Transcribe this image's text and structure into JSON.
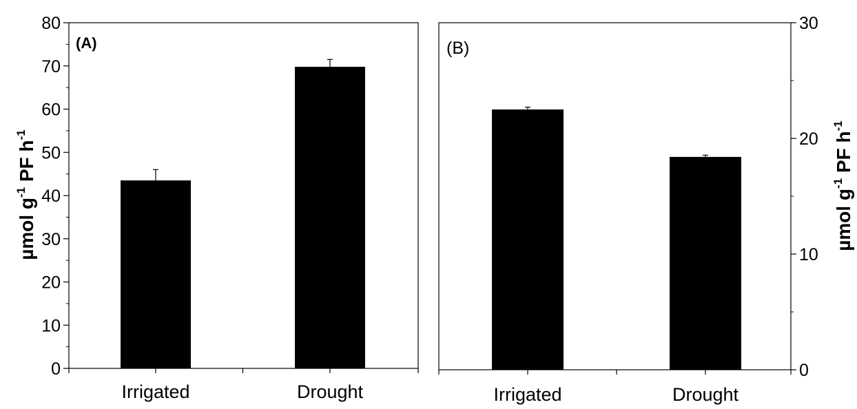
{
  "chart_data": [
    {
      "type": "bar",
      "panel_label": "(A)",
      "categories": [
        "Irrigated",
        "Drought"
      ],
      "values": [
        43.5,
        69.8
      ],
      "errors": [
        2.5,
        1.7
      ],
      "ylim": [
        0,
        80
      ],
      "yticks": [
        0,
        10,
        20,
        30,
        40,
        50,
        60,
        70,
        80
      ],
      "ylabel": {
        "prefix": "µmol  g",
        "sup1": "-1",
        "middle": " PF h",
        "sup2": "-1"
      },
      "y_axis_side": "left",
      "bar_color": "#000000",
      "grid": false
    },
    {
      "type": "bar",
      "panel_label": "(B)",
      "categories": [
        "Irrigated",
        "Drought"
      ],
      "values": [
        22.5,
        18.4
      ],
      "errors": [
        0.2,
        0.15
      ],
      "ylim": [
        0,
        30
      ],
      "yticks": [
        0,
        10,
        20,
        30
      ],
      "ylabel": {
        "prefix": "µmol  g",
        "sup1": "-1",
        "middle": " PF h",
        "sup2": "-1"
      },
      "y_axis_side": "right",
      "bar_color": "#000000",
      "grid": false
    }
  ]
}
